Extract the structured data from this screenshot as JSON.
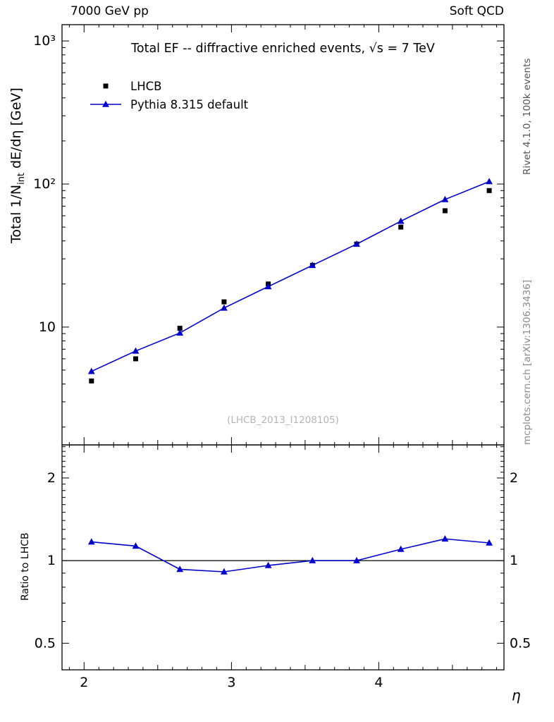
{
  "header": {
    "left": "7000 GeV pp",
    "right": "Soft QCD"
  },
  "side_notes": {
    "top_right": "Rivet 4.1.0,  100k events",
    "bottom_right": "mcplots.cern.ch [arXiv:1306.3436]"
  },
  "watermark": "(LHCB_2013_I1208105)",
  "axes": {
    "y_label_parts": {
      "prefix": "Total 1/N",
      "sub": "int",
      "suffix": "  dE/dη [GeV]"
    }
  },
  "chart_data": {
    "type": "line",
    "title": "Total EF -- diffractive enriched events, √s = 7 TeV",
    "xlabel": "η",
    "ylabel": "Total 1/N_int dE/dη [GeV]",
    "ratio_label": "Ratio to LHCB",
    "y_scale": "log",
    "ratio_scale": "log",
    "grid": false,
    "legend_position": "top-left",
    "xlim": [
      1.85,
      4.85
    ],
    "ylim": [
      1.5,
      1300
    ],
    "ratio_ylim": [
      0.4,
      2.64
    ],
    "x_ticks": [
      2,
      3,
      4
    ],
    "x_tick_labels": [
      "2",
      "3",
      "4"
    ],
    "y_ticks": [
      10,
      100,
      1000
    ],
    "y_tick_labels": [
      "10",
      "10²",
      "10³"
    ],
    "ratio_ticks": [
      0.5,
      1,
      2
    ],
    "ratio_tick_labels": [
      "0.5",
      "1",
      "2"
    ],
    "x": [
      2.05,
      2.35,
      2.65,
      2.95,
      3.25,
      3.55,
      3.85,
      4.15,
      4.45,
      4.75
    ],
    "series": [
      {
        "name": "LHCB",
        "marker": "square",
        "color": "#000000",
        "line": false,
        "values": [
          4.2,
          6.0,
          9.8,
          15.0,
          20.0,
          27.0,
          38.0,
          50.0,
          65.0,
          90.0
        ]
      },
      {
        "name": "Pythia 8.315 default",
        "marker": "triangle",
        "color": "#0000cc",
        "line": true,
        "values": [
          4.9,
          6.8,
          9.1,
          13.6,
          19.2,
          27.0,
          38.0,
          55.0,
          78.0,
          104.0
        ]
      }
    ],
    "ratio": {
      "reference": "LHCB",
      "values": [
        1.17,
        1.13,
        0.93,
        0.91,
        0.96,
        1.0,
        1.0,
        1.1,
        1.2,
        1.16
      ]
    }
  }
}
